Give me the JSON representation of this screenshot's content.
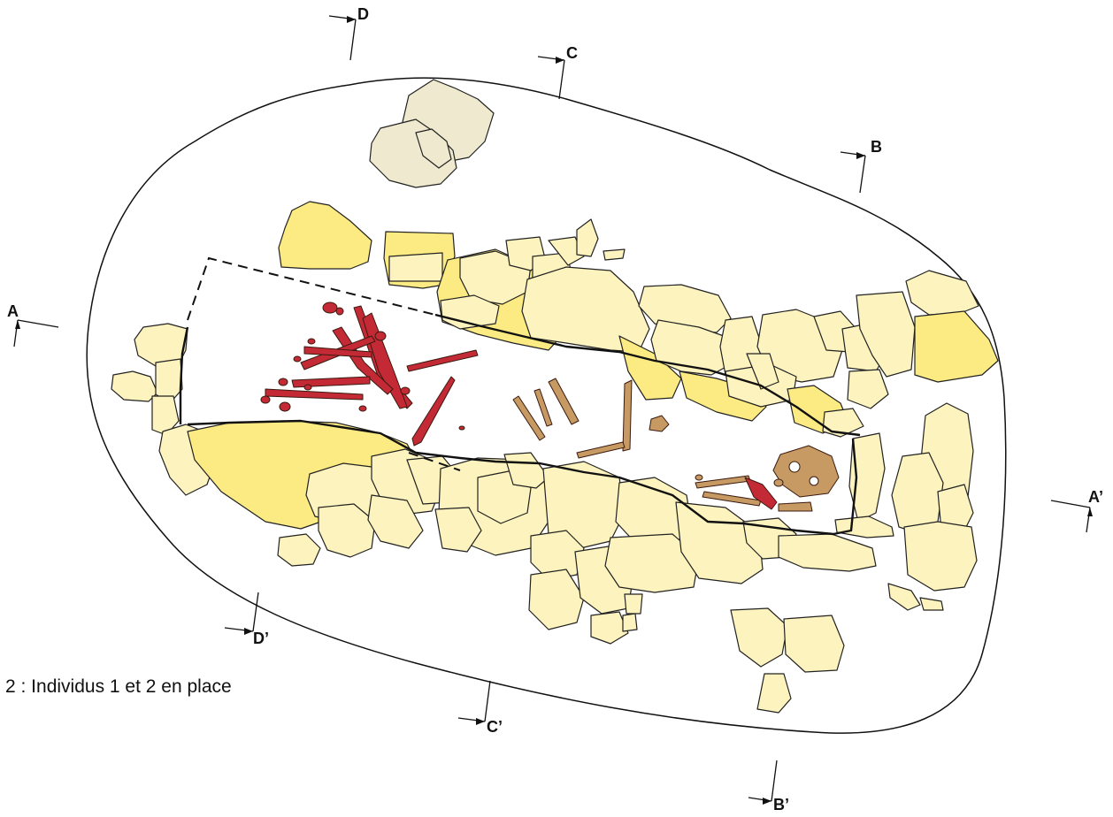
{
  "caption": "2 : Individus 1 et 2 en place",
  "section_labels": {
    "A": "A",
    "A_prime": "A’",
    "B": "B",
    "B_prime": "B’",
    "C": "C",
    "C_prime": "C’",
    "D": "D",
    "D_prime": "D’"
  },
  "colors": {
    "stone_pale": "#FDF3BE",
    "stone_yellow": "#FCEB83",
    "stone_grey": "#EFEACF",
    "individual_1": "#C42A35",
    "individual_2": "#C69A62",
    "outline": "#111111"
  }
}
